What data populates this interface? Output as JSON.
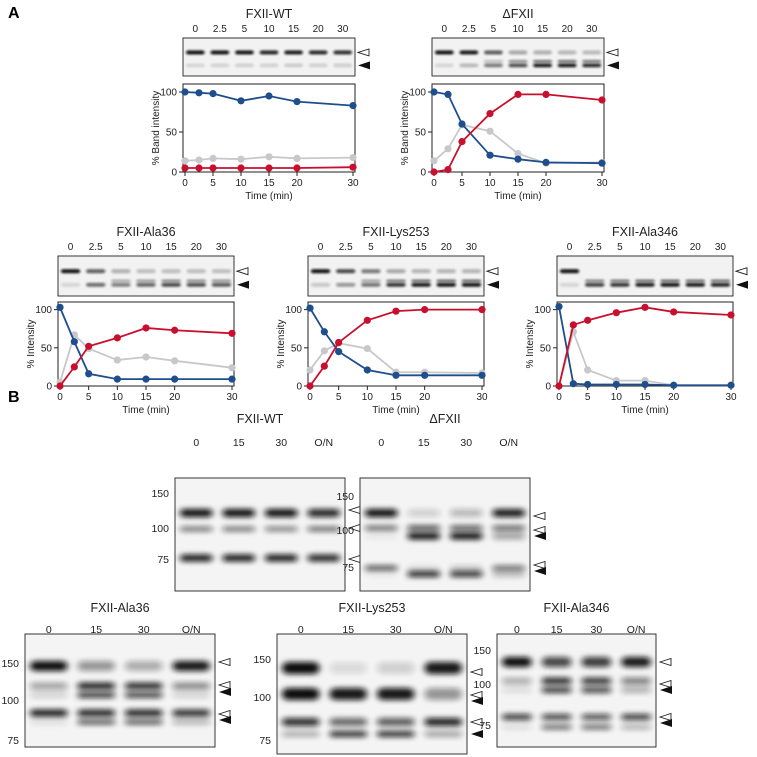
{
  "panel_a": {
    "letter": "A",
    "lanes": [
      "0",
      "2.5",
      "5",
      "10",
      "15",
      "20",
      "30"
    ],
    "xlabel": "Time (min)",
    "ylabel_top": "% Band intensity",
    "ylabel_bottom": "% Intensity",
    "x_ticks": [
      "0",
      "5",
      "10",
      "15",
      "20",
      "30"
    ],
    "y_ticks": [
      "0",
      "50",
      "100"
    ]
  },
  "panel_b": {
    "letter": "B",
    "lanes": [
      "0",
      "15",
      "30",
      "O/N"
    ],
    "mw": [
      "150",
      "100",
      "75"
    ]
  },
  "colors": {
    "blue": "#1f4e8c",
    "red": "#c8102e",
    "gray": "#c8c8cc"
  },
  "chart_data": [
    {
      "type": "line",
      "title": "FXII-WT",
      "xlabel": "Time (min)",
      "ylabel": "% Band intensity",
      "x": [
        0,
        2.5,
        5,
        10,
        15,
        20,
        30
      ],
      "ylim": [
        0,
        100
      ],
      "series": [
        {
          "color": "#1f4e8c",
          "values": [
            100,
            99,
            98,
            89,
            95,
            88,
            83
          ]
        },
        {
          "color": "#c8c8cc",
          "values": [
            14,
            15,
            17,
            16,
            19,
            17,
            18
          ]
        },
        {
          "color": "#c8102e",
          "values": [
            5,
            5,
            5,
            5,
            5,
            5,
            6
          ]
        }
      ]
    },
    {
      "type": "line",
      "title": "ΔFXII",
      "xlabel": "Time (min)",
      "ylabel": "% Band intensity",
      "x": [
        0,
        2.5,
        5,
        10,
        15,
        20,
        30
      ],
      "ylim": [
        0,
        100
      ],
      "series": [
        {
          "color": "#1f4e8c",
          "values": [
            100,
            97,
            60,
            21,
            16,
            12,
            11
          ]
        },
        {
          "color": "#c8c8cc",
          "values": [
            14,
            29,
            59,
            51,
            23,
            11,
            12
          ]
        },
        {
          "color": "#c8102e",
          "values": [
            0,
            3,
            38,
            73,
            97,
            97,
            90
          ]
        }
      ]
    },
    {
      "type": "line",
      "title": "FXII-Ala36",
      "xlabel": "Time (min)",
      "ylabel": "% Intensity",
      "x": [
        0,
        2.5,
        5,
        10,
        15,
        20,
        30
      ],
      "ylim": [
        0,
        100
      ],
      "series": [
        {
          "color": "#1f4e8c",
          "values": [
            103,
            58,
            16,
            9,
            9,
            9,
            9
          ]
        },
        {
          "color": "#c8c8cc",
          "values": [
            5,
            67,
            49,
            34,
            38,
            33,
            24
          ]
        },
        {
          "color": "#c8102e",
          "values": [
            0,
            25,
            52,
            63,
            76,
            73,
            69
          ]
        }
      ]
    },
    {
      "type": "line",
      "title": "FXII-Lys253",
      "xlabel": "Time (min)",
      "ylabel": "% Intensity",
      "x": [
        0,
        2.5,
        5,
        10,
        15,
        20,
        30
      ],
      "ylim": [
        0,
        100
      ],
      "series": [
        {
          "color": "#1f4e8c",
          "values": [
            102,
            71,
            45,
            21,
            14,
            14,
            14
          ]
        },
        {
          "color": "#c8c8cc",
          "values": [
            21,
            46,
            56,
            49,
            18,
            18,
            17
          ]
        },
        {
          "color": "#c8102e",
          "values": [
            0,
            26,
            57,
            86,
            98,
            100,
            100
          ]
        }
      ]
    },
    {
      "type": "line",
      "title": "FXII-Ala346",
      "xlabel": "Time (min)",
      "ylabel": "% Intensity",
      "x": [
        0,
        2.5,
        5,
        10,
        15,
        20,
        30
      ],
      "ylim": [
        0,
        100
      ],
      "series": [
        {
          "color": "#1f4e8c",
          "values": [
            104,
            3,
            2,
            2,
            2,
            1,
            1
          ]
        },
        {
          "color": "#c8c8cc",
          "values": [
            0,
            71,
            21,
            7,
            7,
            1,
            1
          ]
        },
        {
          "color": "#c8102e",
          "values": [
            0,
            80,
            86,
            96,
            103,
            97,
            93
          ]
        }
      ]
    }
  ],
  "blots_b": [
    {
      "title": "FXII-WT"
    },
    {
      "title": "ΔFXII"
    },
    {
      "title": "FXII-Ala36"
    },
    {
      "title": "FXII-Lys253"
    },
    {
      "title": "FXII-Ala346"
    }
  ]
}
